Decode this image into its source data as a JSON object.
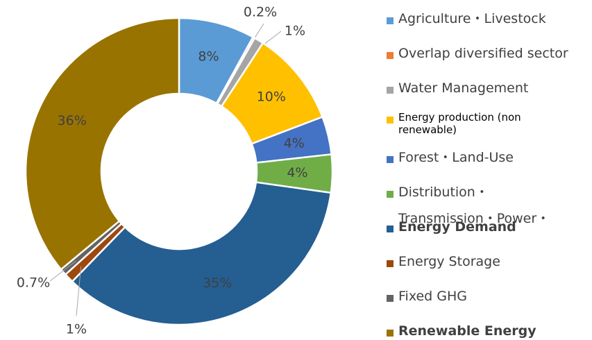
{
  "chart_data": {
    "type": "donut",
    "categories": [
      "Agriculture・Livestock",
      "Overlap diversified sector",
      "Water Management",
      "Energy production (non renewable)",
      "Forest・Land-Use",
      "Distribution・Transmission・Power・",
      "Energy Demand",
      "Energy Storage",
      "Fixed GHG",
      "Renewable Energy"
    ],
    "values": [
      8,
      0.2,
      1,
      10,
      4,
      4,
      35,
      1,
      0.7,
      36
    ],
    "value_labels": [
      "8%",
      "0.2%",
      "1%",
      "10%",
      "4%",
      "4%",
      "35%",
      "1%",
      "0.7%",
      "36%"
    ],
    "colors": [
      "#5b9bd5",
      "#ed7d31",
      "#a5a5a5",
      "#ffc000",
      "#4472c4",
      "#70ad47",
      "#255e91",
      "#9e480e",
      "#636363",
      "#997300"
    ],
    "legend": "right"
  }
}
